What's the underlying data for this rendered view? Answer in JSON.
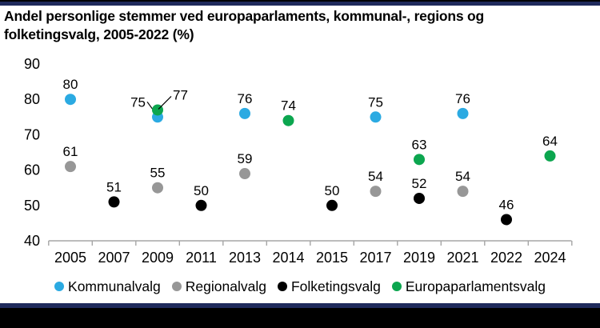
{
  "title": {
    "line1": "Andel personlige stemmer ved europaparlaments, kommunal-, regions og",
    "line2": "folketingsvalg, 2005-2022 (%)"
  },
  "chart_data": {
    "type": "scatter",
    "title": "Andel personlige stemmer ved europaparlaments, kommunal-, regions og folketingsvalg, 2005-2022 (%)",
    "categories": [
      "2005",
      "2007",
      "2009",
      "2011",
      "2013",
      "2014",
      "2015",
      "2017",
      "2019",
      "2021",
      "2022",
      "2024"
    ],
    "series": [
      {
        "name": "Kommunalvalg",
        "color": "#2BAAE2",
        "points": [
          {
            "x": "2005",
            "y": 80
          },
          {
            "x": "2009",
            "y": 75,
            "label_pos": "callout-left"
          },
          {
            "x": "2013",
            "y": 76
          },
          {
            "x": "2017",
            "y": 75
          },
          {
            "x": "2021",
            "y": 76
          }
        ]
      },
      {
        "name": "Regionalvalg",
        "color": "#979797",
        "points": [
          {
            "x": "2005",
            "y": 61
          },
          {
            "x": "2009",
            "y": 55
          },
          {
            "x": "2013",
            "y": 59
          },
          {
            "x": "2017",
            "y": 54
          },
          {
            "x": "2021",
            "y": 54
          }
        ]
      },
      {
        "name": "Folketingsvalg",
        "color": "#000000",
        "points": [
          {
            "x": "2007",
            "y": 51
          },
          {
            "x": "2011",
            "y": 50
          },
          {
            "x": "2015",
            "y": 50
          },
          {
            "x": "2019",
            "y": 52
          },
          {
            "x": "2022",
            "y": 46
          }
        ]
      },
      {
        "name": "Europaparlamentsvalg",
        "color": "#0CA64F",
        "points": [
          {
            "x": "2009",
            "y": 77,
            "label_pos": "callout-right"
          },
          {
            "x": "2014",
            "y": 74
          },
          {
            "x": "2019",
            "y": 63
          },
          {
            "x": "2024",
            "y": 64
          }
        ]
      }
    ],
    "ylim": [
      40,
      90
    ],
    "ytick_step": 10,
    "yticks": [
      40,
      50,
      60,
      70,
      80,
      90
    ],
    "grid": false,
    "legend_position": "bottom",
    "axis_color": "#A6A6A6"
  },
  "theme": {
    "navy_bar": "#1F2A5C",
    "black_bar": "#000000"
  }
}
